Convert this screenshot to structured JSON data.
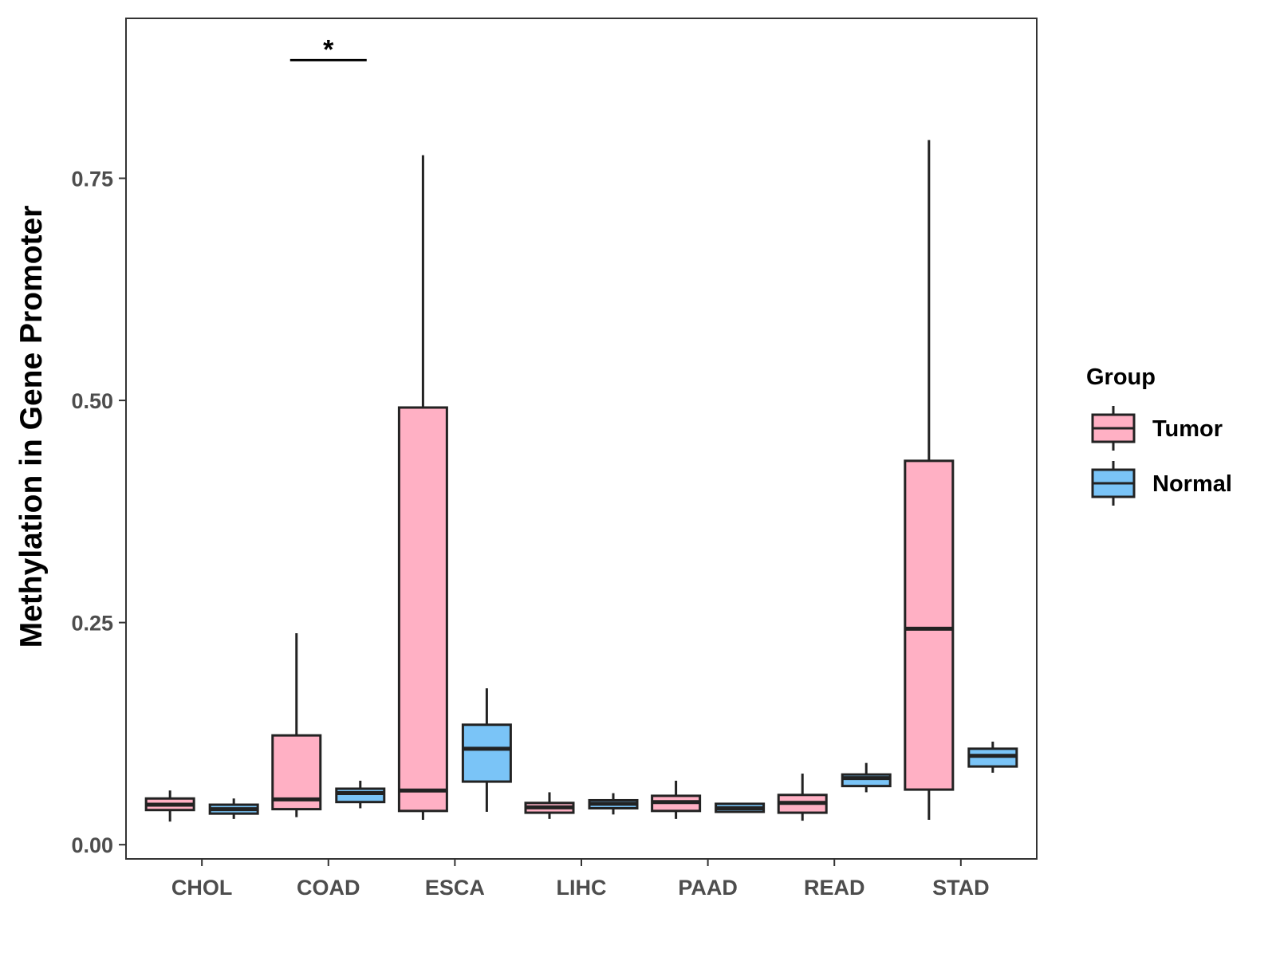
{
  "chart_data": {
    "type": "boxplot",
    "title": "",
    "xlabel": "",
    "ylabel": "Methylation in Gene Promoter",
    "ylim": [
      -0.016,
      0.93
    ],
    "yticks": [
      "0.00",
      "0.25",
      "0.50",
      "0.75"
    ],
    "ytick_values": [
      0.0,
      0.25,
      0.5,
      0.75
    ],
    "categories": [
      "CHOL",
      "COAD",
      "ESCA",
      "LIHC",
      "PAAD",
      "READ",
      "STAD"
    ],
    "legend": {
      "title": "Group",
      "position": "right",
      "entries": [
        {
          "name": "Tumor",
          "color": "#FFB0C4"
        },
        {
          "name": "Normal",
          "color": "#7AC4F7"
        }
      ]
    },
    "series": [
      {
        "name": "Tumor",
        "color": "#FFB0C4",
        "boxes": [
          {
            "category": "CHOL",
            "min": 0.026,
            "q1": 0.039,
            "median": 0.045,
            "q3": 0.052,
            "max": 0.061
          },
          {
            "category": "COAD",
            "min": 0.031,
            "q1": 0.04,
            "median": 0.051,
            "q3": 0.123,
            "max": 0.238
          },
          {
            "category": "ESCA",
            "min": 0.028,
            "q1": 0.038,
            "median": 0.061,
            "q3": 0.492,
            "max": 0.776
          },
          {
            "category": "LIHC",
            "min": 0.029,
            "q1": 0.036,
            "median": 0.042,
            "q3": 0.047,
            "max": 0.059
          },
          {
            "category": "PAAD",
            "min": 0.029,
            "q1": 0.038,
            "median": 0.048,
            "q3": 0.055,
            "max": 0.072
          },
          {
            "category": "READ",
            "min": 0.027,
            "q1": 0.036,
            "median": 0.047,
            "q3": 0.056,
            "max": 0.08
          },
          {
            "category": "STAD",
            "min": 0.028,
            "q1": 0.062,
            "median": 0.243,
            "q3": 0.432,
            "max": 0.793
          }
        ]
      },
      {
        "name": "Normal",
        "color": "#7AC4F7",
        "boxes": [
          {
            "category": "CHOL",
            "min": 0.029,
            "q1": 0.035,
            "median": 0.04,
            "q3": 0.045,
            "max": 0.052
          },
          {
            "category": "COAD",
            "min": 0.041,
            "q1": 0.048,
            "median": 0.058,
            "q3": 0.063,
            "max": 0.072
          },
          {
            "category": "ESCA",
            "min": 0.037,
            "q1": 0.071,
            "median": 0.108,
            "q3": 0.135,
            "max": 0.176
          },
          {
            "category": "LIHC",
            "min": 0.034,
            "q1": 0.041,
            "median": 0.046,
            "q3": 0.05,
            "max": 0.058
          },
          {
            "category": "PAAD",
            "min": 0.036,
            "q1": 0.037,
            "median": 0.041,
            "q3": 0.046,
            "max": 0.047
          },
          {
            "category": "READ",
            "min": 0.059,
            "q1": 0.066,
            "median": 0.075,
            "q3": 0.079,
            "max": 0.092
          },
          {
            "category": "STAD",
            "min": 0.081,
            "q1": 0.088,
            "median": 0.1,
            "q3": 0.108,
            "max": 0.116
          }
        ]
      }
    ],
    "annotations": [
      {
        "category": "COAD",
        "label": "*",
        "y": 0.883
      }
    ]
  }
}
